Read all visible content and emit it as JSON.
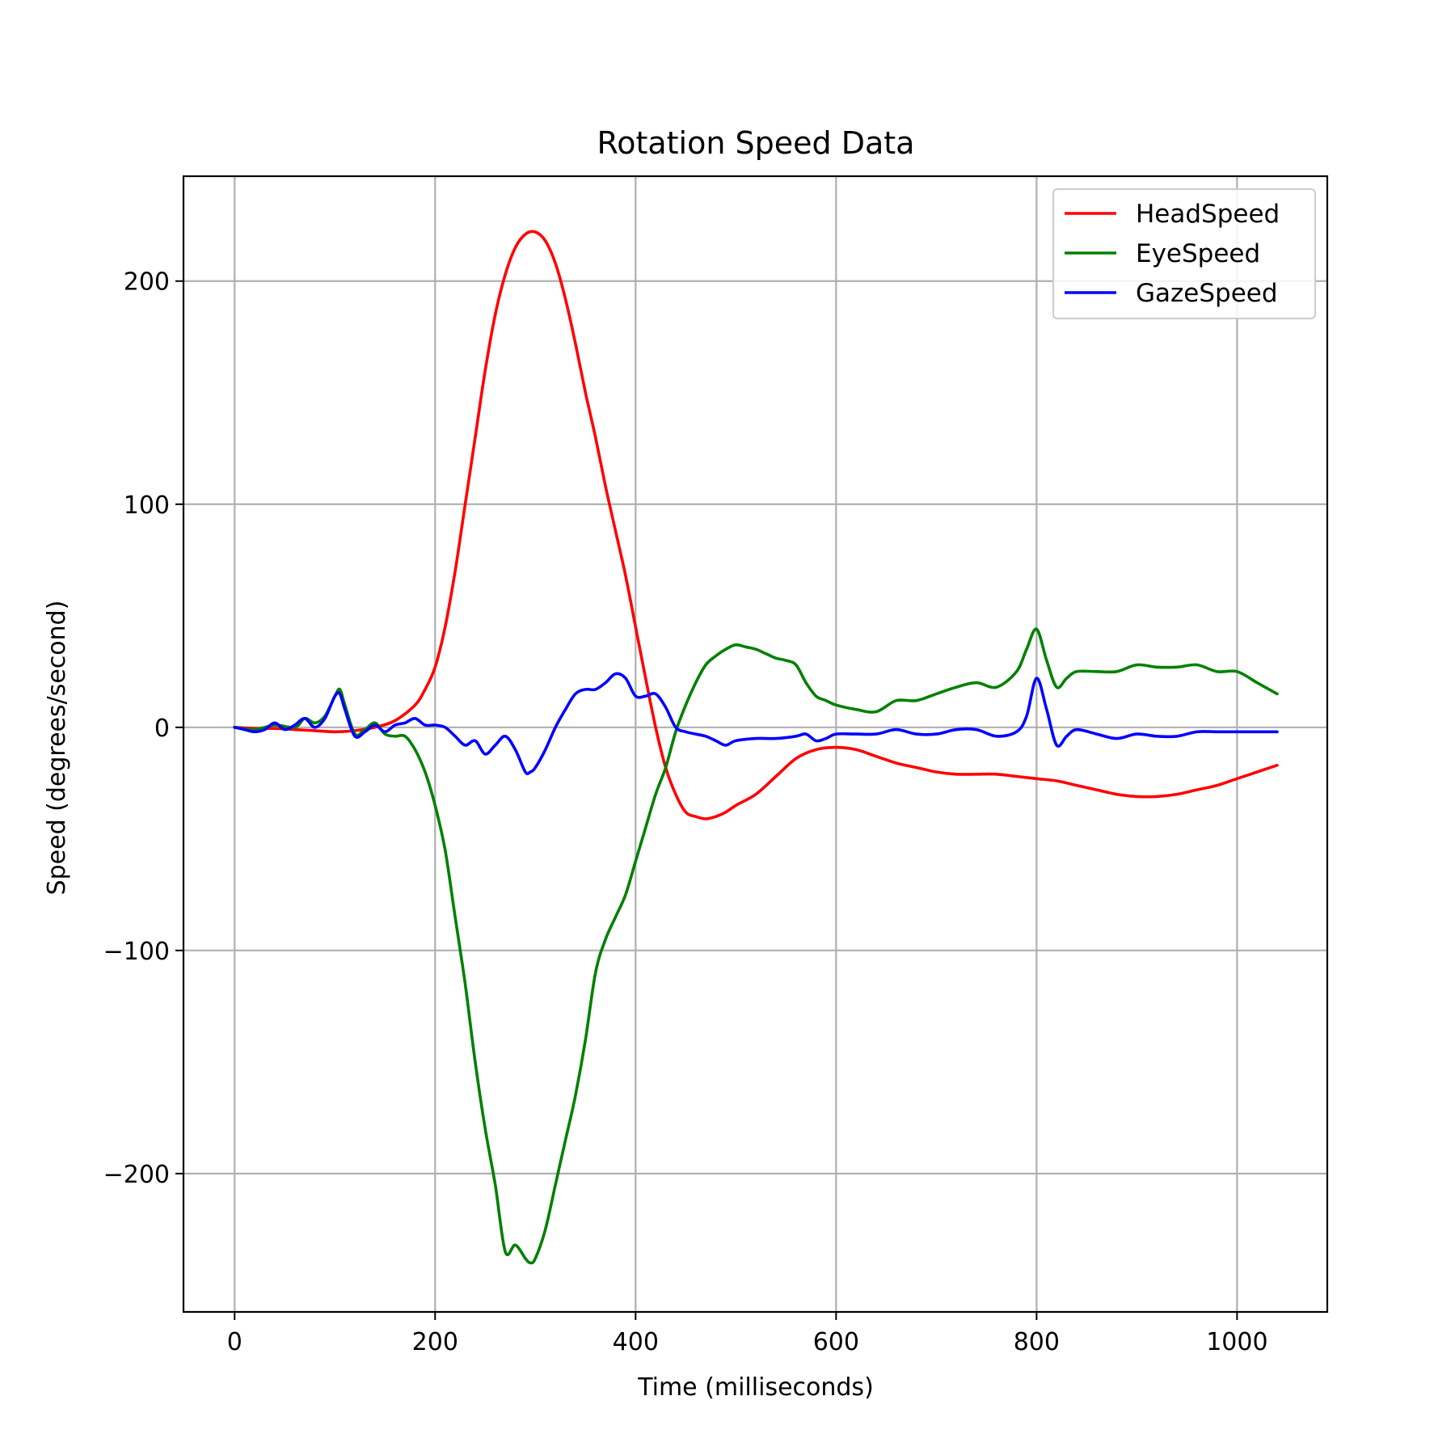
{
  "chart_data": {
    "type": "line",
    "title": "Rotation Speed Data",
    "xlabel": "Time (milliseconds)",
    "ylabel": "Speed (degrees/second)",
    "xlim": [
      -51,
      1090
    ],
    "ylim": [
      -262,
      247
    ],
    "xticks": [
      0,
      200,
      400,
      600,
      800,
      1000
    ],
    "yticks": [
      -200,
      -100,
      0,
      100,
      200
    ],
    "xtick_labels": [
      "0",
      "200",
      "400",
      "600",
      "800",
      "1000"
    ],
    "ytick_labels": [
      "−200",
      "−100",
      "0",
      "100",
      "200"
    ],
    "grid": true,
    "legend_position": "top-right",
    "series": [
      {
        "name": "HeadSpeed",
        "color": "#ff0000",
        "x": [
          0,
          20,
          40,
          60,
          80,
          100,
          120,
          140,
          160,
          180,
          190,
          200,
          210,
          220,
          230,
          240,
          250,
          260,
          270,
          280,
          290,
          300,
          310,
          320,
          330,
          340,
          350,
          360,
          370,
          380,
          390,
          400,
          410,
          420,
          430,
          440,
          450,
          460,
          470,
          480,
          490,
          500,
          520,
          540,
          560,
          580,
          600,
          620,
          640,
          660,
          680,
          700,
          720,
          740,
          760,
          780,
          800,
          820,
          840,
          860,
          880,
          900,
          920,
          940,
          960,
          980,
          1000,
          1020,
          1040
        ],
        "y": [
          0,
          -0.5,
          -0.5,
          -1,
          -1.5,
          -2,
          -1.5,
          0,
          3,
          10,
          17,
          27,
          45,
          70,
          100,
          130,
          160,
          185,
          203,
          215,
          221,
          222,
          218,
          208,
          192,
          172,
          150,
          130,
          108,
          88,
          68,
          45,
          22,
          0,
          -18,
          -30,
          -38,
          -40,
          -41,
          -40,
          -38,
          -35,
          -30,
          -22,
          -14,
          -10,
          -9,
          -10,
          -13,
          -16,
          -18,
          -20,
          -21,
          -21,
          -21,
          -22,
          -23,
          -24,
          -26,
          -28,
          -30,
          -31,
          -31,
          -30,
          -28,
          -26,
          -23,
          -20,
          -17
        ]
      },
      {
        "name": "EyeSpeed",
        "color": "#008000",
        "x": [
          0,
          20,
          40,
          60,
          70,
          80,
          90,
          100,
          105,
          110,
          120,
          130,
          140,
          150,
          160,
          170,
          180,
          190,
          200,
          210,
          220,
          230,
          240,
          250,
          260,
          270,
          280,
          290,
          295,
          300,
          310,
          320,
          330,
          340,
          350,
          360,
          370,
          380,
          390,
          400,
          410,
          420,
          430,
          440,
          450,
          460,
          470,
          480,
          490,
          500,
          510,
          520,
          530,
          540,
          550,
          560,
          570,
          580,
          590,
          600,
          620,
          640,
          660,
          680,
          700,
          720,
          740,
          760,
          780,
          790,
          800,
          810,
          820,
          830,
          840,
          860,
          880,
          900,
          920,
          940,
          960,
          980,
          1000,
          1020,
          1040
        ],
        "y": [
          0,
          -1,
          1,
          0,
          4,
          2,
          5,
          14,
          17,
          10,
          -3,
          -1,
          2,
          -3,
          -4,
          -4,
          -10,
          -20,
          -35,
          -55,
          -85,
          -115,
          -150,
          -180,
          -205,
          -235,
          -232,
          -238,
          -240,
          -238,
          -225,
          -205,
          -185,
          -165,
          -140,
          -110,
          -95,
          -85,
          -75,
          -60,
          -45,
          -30,
          -18,
          -2,
          10,
          20,
          28,
          32,
          35,
          37,
          36,
          35,
          33,
          31,
          30,
          28,
          20,
          14,
          12,
          10,
          8,
          7,
          12,
          12,
          15,
          18,
          20,
          18,
          25,
          35,
          44,
          30,
          18,
          22,
          25,
          25,
          25,
          28,
          27,
          27,
          28,
          25,
          25,
          20,
          15
        ]
      },
      {
        "name": "GazeSpeed",
        "color": "#0000ff",
        "x": [
          0,
          10,
          20,
          30,
          40,
          50,
          60,
          70,
          80,
          90,
          100,
          105,
          110,
          120,
          130,
          140,
          150,
          160,
          170,
          180,
          190,
          200,
          210,
          220,
          230,
          240,
          250,
          260,
          270,
          280,
          290,
          295,
          300,
          310,
          320,
          330,
          340,
          350,
          360,
          370,
          380,
          390,
          400,
          410,
          420,
          430,
          440,
          450,
          460,
          470,
          480,
          490,
          500,
          520,
          540,
          560,
          570,
          580,
          590,
          600,
          620,
          640,
          660,
          680,
          700,
          720,
          740,
          760,
          780,
          790,
          800,
          810,
          820,
          830,
          840,
          860,
          880,
          900,
          920,
          940,
          960,
          980,
          1000,
          1020,
          1040
        ],
        "y": [
          0,
          -1,
          -2,
          -1,
          2,
          -1,
          1,
          4,
          0,
          4,
          14,
          15,
          8,
          -4,
          -2,
          1,
          -2,
          1,
          2,
          4,
          1,
          1,
          0,
          -4,
          -8,
          -6,
          -12,
          -8,
          -4,
          -10,
          -20,
          -20,
          -18,
          -10,
          0,
          8,
          15,
          17,
          17,
          20,
          24,
          22,
          14,
          14,
          15,
          9,
          0,
          -2,
          -3,
          -4,
          -6,
          -8,
          -6,
          -5,
          -5,
          -4,
          -3,
          -6,
          -5,
          -3,
          -3,
          -3,
          -1,
          -3,
          -3,
          -1,
          -1,
          -4,
          -2,
          5,
          22,
          8,
          -8,
          -4,
          -1,
          -3,
          -5,
          -3,
          -4,
          -4,
          -2,
          -2,
          -2,
          -2,
          -2
        ]
      }
    ]
  }
}
